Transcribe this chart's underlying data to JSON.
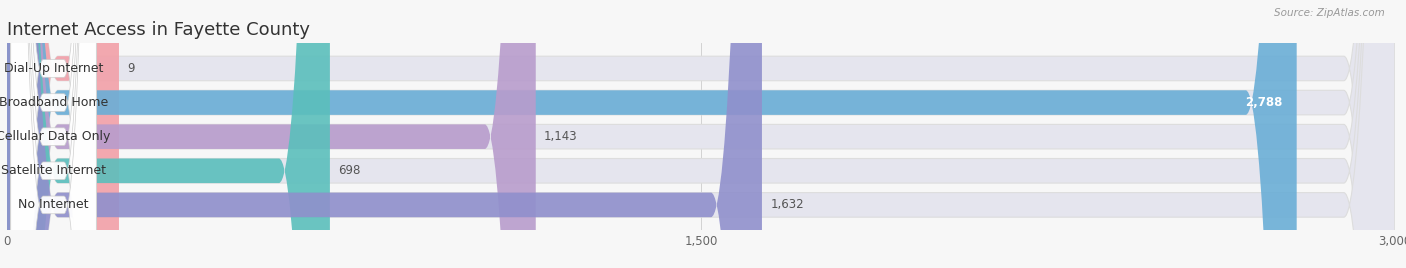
{
  "title": "Internet Access in Fayette County",
  "source": "Source: ZipAtlas.com",
  "categories": [
    "Dial-Up Internet",
    "Broadband Home",
    "Cellular Data Only",
    "Satellite Internet",
    "No Internet"
  ],
  "values": [
    9,
    2788,
    1143,
    698,
    1632
  ],
  "bar_colors": [
    "#f2a0a8",
    "#6aaed6",
    "#b89ccc",
    "#5bbfbc",
    "#9090cc"
  ],
  "xlim": [
    0,
    3000
  ],
  "xticks": [
    0,
    1500,
    3000
  ],
  "xtick_labels": [
    "0",
    "1,500",
    "3,000"
  ],
  "background_color": "#f7f7f7",
  "bar_bg_color": "#e5e5ee",
  "title_fontsize": 13,
  "label_fontsize": 9,
  "value_fontsize": 8.5
}
